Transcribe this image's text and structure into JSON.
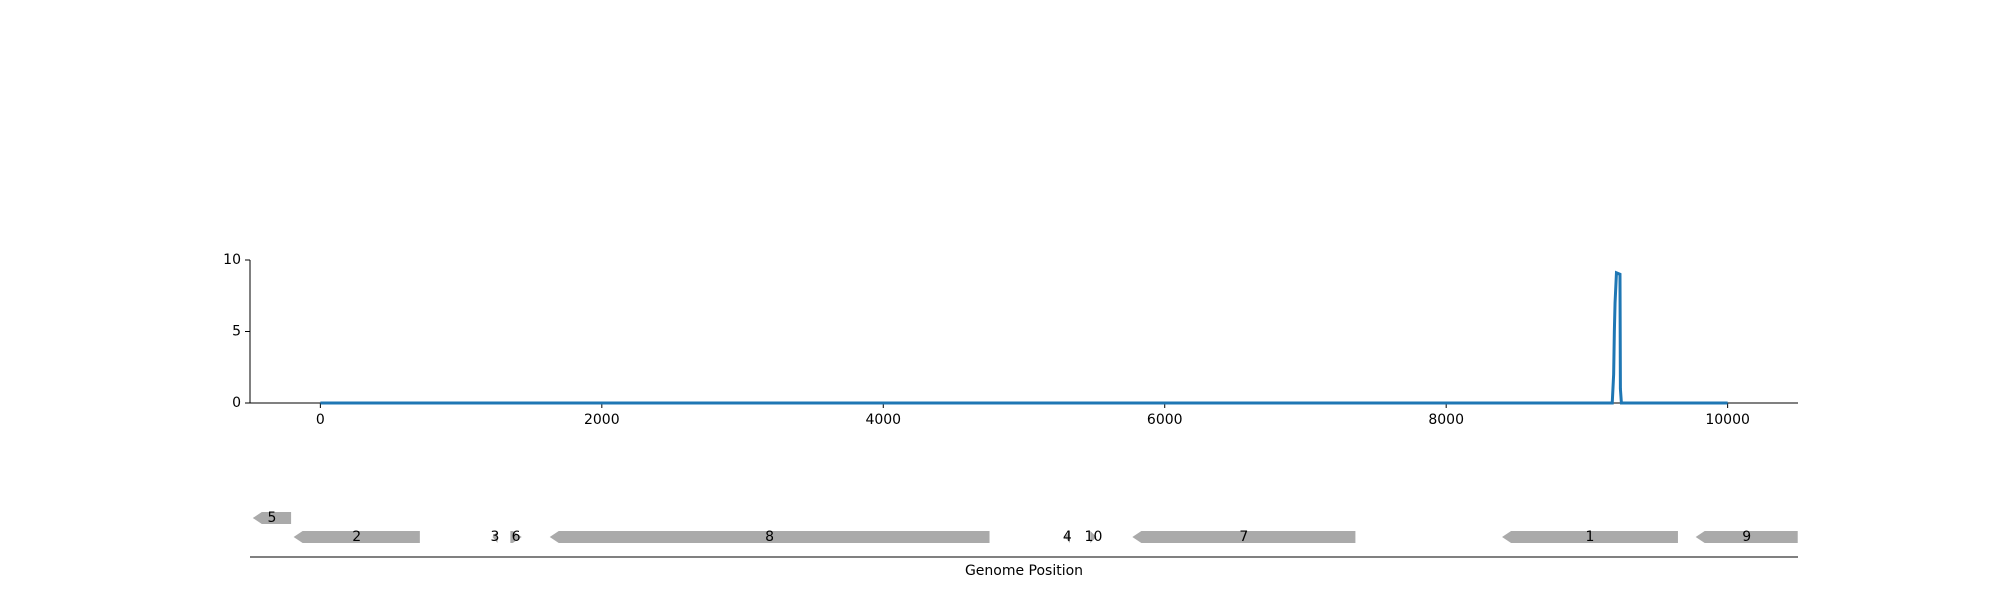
{
  "chart_data": [
    {
      "type": "line",
      "color": "#1f77b4",
      "x": [
        0,
        9180,
        9190,
        9195,
        9200,
        9210,
        9235,
        9238,
        9245,
        10000
      ],
      "values": [
        0,
        0,
        2,
        5,
        7,
        9.1,
        9,
        1,
        0,
        0
      ],
      "xlim": [
        -500,
        10500
      ],
      "ylim": [
        0,
        10
      ],
      "xticks": [
        0,
        2000,
        4000,
        6000,
        8000,
        10000
      ],
      "yticks": [
        0,
        5,
        10
      ]
    },
    {
      "type": "genes",
      "xlabel": "Genome Position",
      "color": "#aaaaaa",
      "xlim": [
        -500,
        10500
      ],
      "features": [
        {
          "label": "1",
          "start": 8397,
          "end": 9647,
          "strand": -1
        },
        {
          "label": "2",
          "start": -190,
          "end": 707,
          "strand": -1
        },
        {
          "label": "3",
          "start": 1223,
          "end": 1259,
          "strand": -1
        },
        {
          "label": "4",
          "start": 5290,
          "end": 5326,
          "strand": -1
        },
        {
          "label": "5",
          "start": -480,
          "end": -208,
          "strand": -1
        },
        {
          "label": "6",
          "start": 1350,
          "end": 1431,
          "strand": 1
        },
        {
          "label": "7",
          "start": 5770,
          "end": 7355,
          "strand": -1
        },
        {
          "label": "8",
          "start": 1630,
          "end": 4755,
          "strand": -1
        },
        {
          "label": "9",
          "start": 9773,
          "end": 10498,
          "strand": -1
        },
        {
          "label": "10",
          "start": 5471,
          "end": 5516,
          "strand": 1
        }
      ]
    }
  ]
}
